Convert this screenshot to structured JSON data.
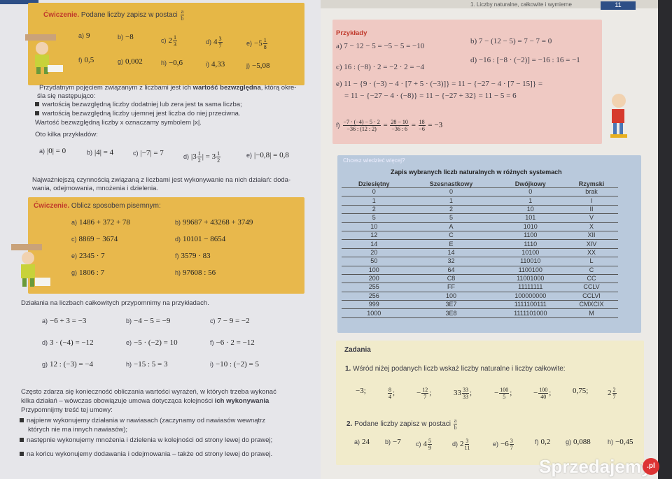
{
  "left_page": {
    "exercise1": {
      "title": "Ćwiczenie.",
      "text": "Podane liczby zapisz w postaci",
      "frac": {
        "n": "a",
        "d": "b"
      },
      "items": [
        {
          "label": "a)",
          "parts": [
            "9"
          ]
        },
        {
          "label": "b)",
          "parts": [
            "−8"
          ]
        },
        {
          "label": "c)",
          "parts": [
            "2",
            {
              "n": "1",
              "d": "3"
            }
          ]
        },
        {
          "label": "d)",
          "parts": [
            "4",
            {
              "n": "3",
              "d": "7"
            }
          ]
        },
        {
          "label": "e)",
          "parts": [
            "−5",
            {
              "n": "1",
              "d": "8"
            }
          ]
        },
        {
          "label": "f)",
          "parts": [
            "0,5"
          ]
        },
        {
          "label": "g)",
          "parts": [
            "0,002"
          ]
        },
        {
          "label": "h)",
          "parts": [
            "−0,6"
          ]
        },
        {
          "label": "i)",
          "parts": [
            "4,33"
          ]
        },
        {
          "label": "j)",
          "parts": [
            "−5,08"
          ]
        }
      ]
    },
    "abs_text": {
      "line1a": "Przydatnym pojęciem związanym z liczbami jest ich ",
      "line1b": "wartość bezwzględna",
      "line1c": ", którą okre-",
      "line2": "śla się następująco:",
      "bullet1": "wartością bezwzględną liczby dodatniej lub zera jest ta sama liczba;",
      "bullet2": "wartością bezwzględną liczby ujemnej jest liczba do niej przeciwna.",
      "line3": "Wartość bezwzględną liczby x oznaczamy symbolem |x|.",
      "line4": "Oto kilka przykładów:"
    },
    "abs_examples": [
      {
        "label": "a)",
        "parts": [
          "|0| = 0"
        ]
      },
      {
        "label": "b)",
        "parts": [
          "|4| = 4"
        ]
      },
      {
        "label": "c)",
        "parts": [
          "|−7| = 7"
        ]
      },
      {
        "label": "d)",
        "parts": [
          "|3",
          {
            "n": "1",
            "d": "2"
          },
          "| = 3",
          {
            "n": "1",
            "d": "2"
          }
        ]
      },
      {
        "label": "e)",
        "parts": [
          "|−0,8| = 0,8"
        ]
      }
    ],
    "ops_text": {
      "line1": "Najważniejszą czynnością związaną z liczbami jest wykonywanie na nich działań: doda-",
      "line2": "wania, odejmowania, mnożenia i dzielenia."
    },
    "exercise2": {
      "title": "Ćwiczenie.",
      "text": "Oblicz sposobem pisemnym:",
      "items": [
        {
          "label": "a)",
          "parts": [
            "1486 + 372 + 78"
          ]
        },
        {
          "label": "b)",
          "parts": [
            "99687 + 43268 + 3749"
          ]
        },
        {
          "label": "c)",
          "parts": [
            "8869 − 3674"
          ]
        },
        {
          "label": "d)",
          "parts": [
            "10101 − 8654"
          ]
        },
        {
          "label": "e)",
          "parts": [
            "2345 · 7"
          ]
        },
        {
          "label": "f)",
          "parts": [
            "3579 · 83"
          ]
        },
        {
          "label": "g)",
          "parts": [
            "1806 : 7"
          ]
        },
        {
          "label": "h)",
          "parts": [
            "97608 : 56"
          ]
        }
      ]
    },
    "integers_intro": "Działania na liczbach całkowitych przypomnimy na przykładach.",
    "integer_examples": [
      {
        "label": "a)",
        "parts": [
          "−6 + 3 = −3"
        ]
      },
      {
        "label": "b)",
        "parts": [
          "−4 − 5 = −9"
        ]
      },
      {
        "label": "c)",
        "parts": [
          "7 − 9 = −2"
        ]
      },
      {
        "label": "d)",
        "parts": [
          "3 · (−4) = −12"
        ]
      },
      {
        "label": "e)",
        "parts": [
          "−5 · (−2) = 10"
        ]
      },
      {
        "label": "f)",
        "parts": [
          "−6 · 2 = −12"
        ]
      },
      {
        "label": "g)",
        "parts": [
          "12 : (−3) = −4"
        ]
      },
      {
        "label": "h)",
        "parts": [
          "−15 : 5 = 3"
        ]
      },
      {
        "label": "i)",
        "parts": [
          "−10 : (−2) = 5"
        ]
      }
    ],
    "order_text": {
      "line1": "Często zdarza się konieczność obliczania wartości wyrażeń, w których trzeba wykonać",
      "line2a": "kilka działań – wówczas obowiązuje umowa dotycząca kolejności ",
      "line2b": "ich wykonywania",
      "line3": "Przypomnijmy treść tej umowy:",
      "bullet1a": "najpierw wykonujemy działania w nawiasach (zaczynamy od nawiasów wewnątrz",
      "bullet1b": "których nie ma innych nawiasów);",
      "bullet2": "następnie wykonujemy mnożenia i dzielenia w kolejności od strony lewej do prawej;",
      "bullet3": "na końcu wykonujemy dodawania i odejmowania – także od strony lewej do prawej."
    }
  },
  "right_page": {
    "header": "1. Liczby naturalne, całkowite i wymierne",
    "page_number": "11",
    "examples": {
      "title": "Przykłady",
      "a": "a) 7 − 12 − 5 = −5 − 5 = −10",
      "b": "b) 7 − (12 − 5) = 7 − 7 = 0",
      "c": "c) 16 : (−8) · 2 = −2 · 2 = −4",
      "d": "d) −16 : [−8 · (−2)] = −16 : 16 = −1",
      "e1": "e) 11 − {9 · (−3) − 4 · [7 + 5 · (−3)]} = 11 − {−27 − 4 · [7 − 15]} =",
      "e2": "= 11 − {−27 − 4 · (−8)} = 11 − {−27 + 32} = 11 − 5 = 6",
      "f": {
        "label": "f)",
        "parts": [
          {
            "n": "−7 · (−4) − 5 · 2",
            "d": "−36 : (12 : 2)"
          },
          " = ",
          {
            "n": "28 − 10",
            "d": "−36 : 6"
          },
          " = ",
          {
            "n": "18",
            "d": "−6"
          },
          " = −3"
        ]
      }
    },
    "more": {
      "label": "Chcesz wiedzieć więcej?",
      "table_title": "Zapis wybranych liczb naturalnych w różnych systemach",
      "columns": [
        "Dziesiętny",
        "Szesnastkowy",
        "Dwójkowy",
        "Rzymski"
      ],
      "rows": [
        [
          "0",
          "0",
          "0",
          "brak"
        ],
        [
          "1",
          "1",
          "1",
          "I"
        ],
        [
          "2",
          "2",
          "10",
          "II"
        ],
        [
          "5",
          "5",
          "101",
          "V"
        ],
        [
          "10",
          "A",
          "1010",
          "X"
        ],
        [
          "12",
          "C",
          "1100",
          "XII"
        ],
        [
          "14",
          "E",
          "1110",
          "XIV"
        ],
        [
          "20",
          "14",
          "10100",
          "XX"
        ],
        [
          "50",
          "32",
          "110010",
          "L"
        ],
        [
          "100",
          "64",
          "1100100",
          "C"
        ],
        [
          "200",
          "C8",
          "11001000",
          "CC"
        ],
        [
          "255",
          "FF",
          "11111111",
          "CCLV"
        ],
        [
          "256",
          "100",
          "100000000",
          "CCLVI"
        ],
        [
          "999",
          "3E7",
          "1111100111",
          "CMXCIX"
        ],
        [
          "1000",
          "3E8",
          "1111101000",
          "M"
        ]
      ]
    },
    "tasks": {
      "title": "Zadania",
      "task1": {
        "num": "1.",
        "text": "Wśród niżej podanych liczb wskaż liczby naturalne i liczby całkowite:",
        "items": [
          {
            "label": "",
            "parts": [
              "−3;"
            ]
          },
          {
            "label": "",
            "parts": [
              {
                "n": "8",
                "d": "4"
              },
              ";"
            ]
          },
          {
            "label": "",
            "parts": [
              "−",
              {
                "n": "12",
                "d": "7"
              },
              ";"
            ]
          },
          {
            "label": "",
            "parts": [
              "33",
              {
                "n": "33",
                "d": "33"
              },
              ";"
            ]
          },
          {
            "label": "",
            "parts": [
              "−",
              {
                "n": "100",
                "d": "5"
              },
              ";"
            ]
          },
          {
            "label": "",
            "parts": [
              "−",
              {
                "n": "100",
                "d": "40"
              },
              ";"
            ]
          },
          {
            "label": "",
            "parts": [
              "0,75;"
            ]
          },
          {
            "label": "",
            "parts": [
              "2",
              {
                "n": "2",
                "d": "7"
              }
            ]
          }
        ]
      },
      "task2": {
        "num": "2.",
        "text": "Podane liczby zapisz w postaci",
        "frac": {
          "n": "a",
          "d": "b"
        },
        "items": [
          {
            "label": "a)",
            "parts": [
              "24"
            ]
          },
          {
            "label": "b)",
            "parts": [
              "−7"
            ]
          },
          {
            "label": "c)",
            "parts": [
              "4",
              {
                "n": "5",
                "d": "9"
              }
            ]
          },
          {
            "label": "d)",
            "parts": [
              "2",
              {
                "n": "3",
                "d": "11"
              }
            ]
          },
          {
            "label": "e)",
            "parts": [
              "−6",
              {
                "n": "3",
                "d": "7"
              }
            ]
          },
          {
            "label": "f)",
            "parts": [
              "0,2"
            ]
          },
          {
            "label": "g)",
            "parts": [
              "0,088"
            ]
          },
          {
            "label": "h)",
            "parts": [
              "−0,45"
            ]
          }
        ]
      }
    }
  },
  "watermark": {
    "text": "Sprzedajemy",
    "suffix": ".pl"
  },
  "colors": {
    "yellow_box": "#e6b746",
    "pink_box": "#efc9c3",
    "blue_box": "#b9c9dc",
    "cream_box": "#f1ebcb",
    "accent_red": "#c0392b",
    "page_blue": "#2e4f86"
  }
}
